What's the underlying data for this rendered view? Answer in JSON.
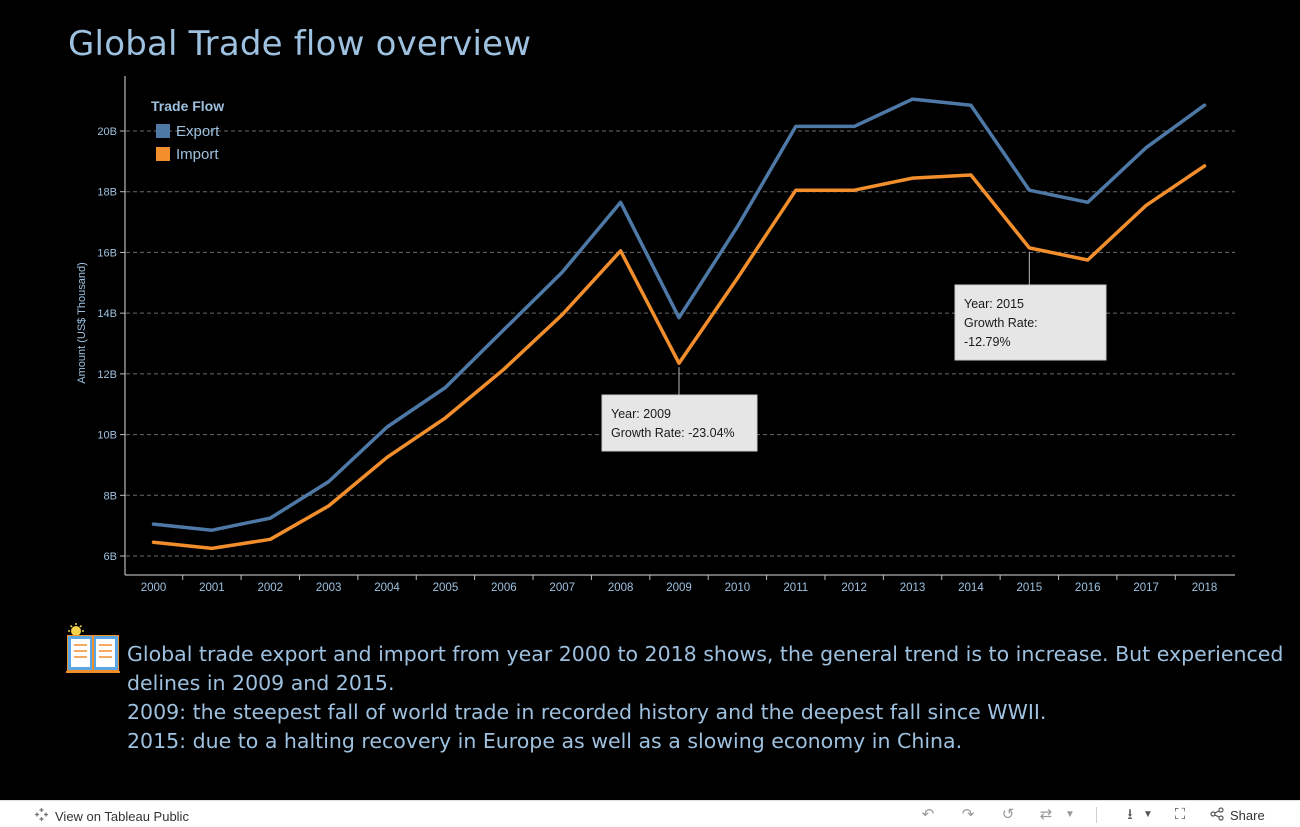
{
  "title": "Global Trade flow overview",
  "chart_data": {
    "type": "line",
    "x": [
      "2000",
      "2001",
      "2002",
      "2003",
      "2004",
      "2005",
      "2006",
      "2007",
      "2008",
      "2009",
      "2010",
      "2011",
      "2012",
      "2013",
      "2014",
      "2015",
      "2016",
      "2017",
      "2018"
    ],
    "series": [
      {
        "name": "Export",
        "color": "#4e79a7",
        "values": [
          7.05,
          6.85,
          7.25,
          8.45,
          10.25,
          11.55,
          13.45,
          15.35,
          17.65,
          13.85,
          16.85,
          20.15,
          20.15,
          21.05,
          20.85,
          18.05,
          17.65,
          19.45,
          20.85
        ]
      },
      {
        "name": "Import",
        "color": "#f28e2b",
        "values": [
          6.45,
          6.25,
          6.55,
          7.65,
          9.25,
          10.55,
          12.15,
          13.95,
          16.05,
          12.35,
          15.15,
          18.05,
          18.05,
          18.45,
          18.55,
          16.15,
          15.75,
          17.55,
          18.85
        ]
      }
    ],
    "ylabel": "Amount (US$ Thousand)",
    "xlabel": "",
    "yticks": [
      6,
      8,
      10,
      12,
      14,
      16,
      18,
      20
    ],
    "ytick_labels": [
      "6B",
      "8B",
      "10B",
      "12B",
      "14B",
      "16B",
      "18B",
      "20B"
    ],
    "ylim": [
      5.7,
      21.5
    ],
    "grid": true,
    "legend": {
      "title": "Trade Flow",
      "placement": "top-left",
      "items": [
        "Export",
        "Import"
      ]
    },
    "annotations": [
      {
        "year": "2009",
        "line1": "Year: 2009",
        "line2": "Growth Rate: -23.04%"
      },
      {
        "year": "2015",
        "line1": "Year: 2015",
        "line2": "Growth Rate:",
        "line3": "-12.79%"
      }
    ]
  },
  "note": {
    "icon": "open-book-icon",
    "lines": [
      "Global trade export and import from year 2000 to 2018 shows, the general trend is to increase. But experienced",
      "delines in 2009 and 2015.",
      "2009: the steepest fall of world trade in recorded history and the deepest fall since WWII.",
      "2015: due to a halting recovery in Europe as well as a slowing economy in China."
    ]
  },
  "footer": {
    "view_label": "View on Tableau Public",
    "share_label": "Share"
  },
  "colors": {
    "background": "#000000",
    "title": "#9ec1e0",
    "axis_text": "#9ec1e0",
    "export": "#4e79a7",
    "import": "#f28e2b",
    "gridline": "#6b6b6b",
    "tooltip_bg": "#e6e6e6"
  }
}
